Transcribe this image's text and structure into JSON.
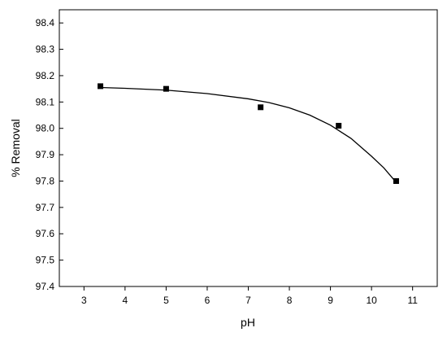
{
  "chart_data": {
    "type": "scatter",
    "x_label": "pH",
    "y_label": "% Removal",
    "x": [
      3.4,
      5,
      7.3,
      9.2,
      10.6
    ],
    "values": [
      98.16,
      98.15,
      98.08,
      98.01,
      97.8
    ],
    "color": "#000000",
    "fit": {
      "x": [
        3.4,
        4,
        5,
        6,
        7,
        7.5,
        8,
        8.5,
        9,
        9.5,
        10,
        10.3,
        10.6
      ],
      "values": [
        98.155,
        98.152,
        98.145,
        98.132,
        98.112,
        98.098,
        98.078,
        98.05,
        98.012,
        97.962,
        97.894,
        97.85,
        97.795
      ]
    },
    "xlim": [
      2.4,
      11.6
    ],
    "xticks": [
      3,
      4,
      5,
      6,
      7,
      8,
      9,
      10,
      11
    ],
    "ylim": [
      97.4,
      98.45
    ],
    "yticks": [
      97.4,
      97.5,
      97.6,
      97.7,
      97.8,
      97.9,
      {
        "value": 98,
        "label": "98.0"
      },
      98.1,
      98.2,
      98.3,
      98.4
    ]
  }
}
